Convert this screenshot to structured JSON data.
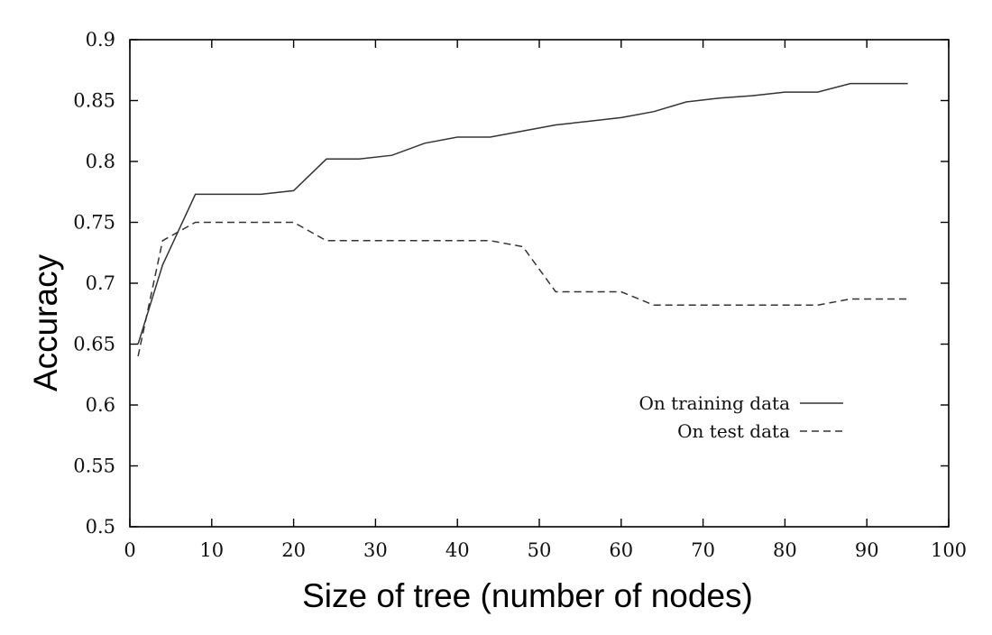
{
  "chart_data": {
    "type": "line",
    "title": "",
    "xlabel": "Size of tree (number of nodes)",
    "ylabel": "Accuracy",
    "xlim": [
      0,
      100
    ],
    "ylim": [
      0.5,
      0.9
    ],
    "xticks": [
      0,
      10,
      20,
      30,
      40,
      50,
      60,
      70,
      80,
      90,
      100
    ],
    "yticks": [
      0.5,
      0.55,
      0.6,
      0.65,
      0.7,
      0.75,
      0.8,
      0.85,
      0.9
    ],
    "xtick_labels": [
      "0",
      "10",
      "20",
      "30",
      "40",
      "50",
      "60",
      "70",
      "80",
      "90",
      "100"
    ],
    "ytick_labels": [
      "0.5",
      "0.55",
      "0.6",
      "0.65",
      "0.7",
      "0.75",
      "0.8",
      "0.85",
      "0.9"
    ],
    "grid": false,
    "legend_position": "center-right",
    "series": [
      {
        "name": "On training data",
        "style": "solid",
        "color": "#333333",
        "x": [
          1,
          4,
          8,
          12,
          16,
          20,
          24,
          28,
          32,
          36,
          40,
          44,
          48,
          52,
          56,
          60,
          64,
          68,
          72,
          76,
          80,
          84,
          88,
          92,
          95
        ],
        "y": [
          0.65,
          0.715,
          0.773,
          0.773,
          0.773,
          0.776,
          0.802,
          0.802,
          0.805,
          0.815,
          0.82,
          0.82,
          0.825,
          0.83,
          0.833,
          0.836,
          0.841,
          0.849,
          0.852,
          0.854,
          0.857,
          0.857,
          0.864,
          0.864,
          0.864
        ]
      },
      {
        "name": "On test data",
        "style": "dashed",
        "color": "#333333",
        "x": [
          1,
          4,
          8,
          12,
          16,
          20,
          24,
          28,
          32,
          36,
          40,
          44,
          48,
          52,
          56,
          60,
          64,
          68,
          72,
          76,
          80,
          84,
          88,
          92,
          95
        ],
        "y": [
          0.64,
          0.735,
          0.75,
          0.75,
          0.75,
          0.75,
          0.735,
          0.735,
          0.735,
          0.735,
          0.735,
          0.735,
          0.73,
          0.693,
          0.693,
          0.693,
          0.682,
          0.682,
          0.682,
          0.682,
          0.682,
          0.682,
          0.687,
          0.687,
          0.687
        ]
      }
    ]
  }
}
